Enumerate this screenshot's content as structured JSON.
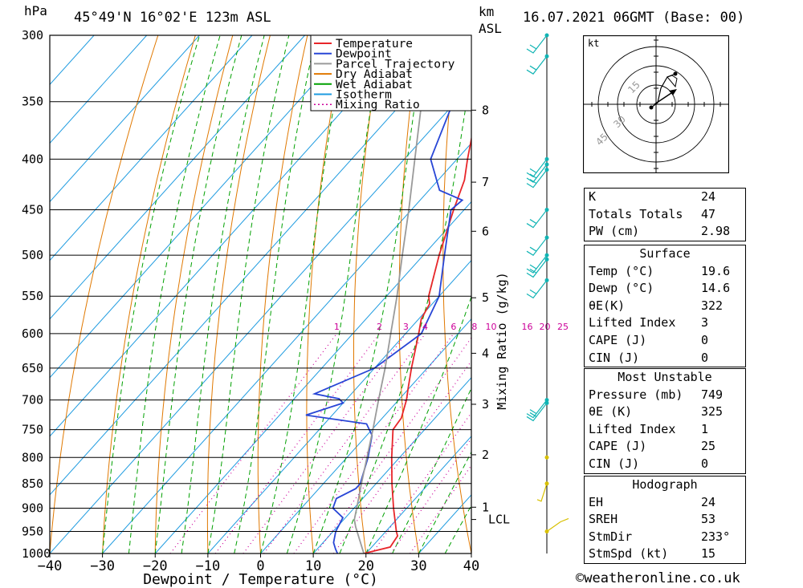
{
  "header": {
    "pressure_unit": "hPa",
    "station": "45°49'N 16°02'E 123m ASL",
    "km_label": "km",
    "asl_label": "ASL",
    "datetime": "16.07.2021 06GMT (Base: 00)"
  },
  "chart_data": {
    "type": "line",
    "subtype": "skew-T log-P diagram",
    "xlabel": "Dewpoint / Temperature (°C)",
    "ylabel": "hPa",
    "right_axis_label": "Mixing Ratio (g/kg)",
    "x_ticks": [
      -40,
      -30,
      -20,
      -10,
      0,
      10,
      20,
      30,
      40
    ],
    "pressure_levels": [
      300,
      350,
      400,
      450,
      500,
      550,
      600,
      650,
      700,
      750,
      800,
      850,
      900,
      950,
      1000
    ],
    "xlim_at_1000hPa": [
      -40,
      40
    ],
    "plim": [
      1000,
      300
    ],
    "height_ticks_km": [
      {
        "label": "8",
        "p": 357
      },
      {
        "label": "7",
        "p": 422
      },
      {
        "label": "6",
        "p": 473
      },
      {
        "label": "5",
        "p": 552
      },
      {
        "label": "4",
        "p": 628
      },
      {
        "label": "3",
        "p": 707
      },
      {
        "label": "2",
        "p": 795
      },
      {
        "label": "1",
        "p": 898
      },
      {
        "label": "LCL",
        "p": 924
      }
    ],
    "mixing_ratio_labels": [
      "1",
      "2",
      "3",
      "4",
      "6",
      "8",
      "10",
      "16",
      "20",
      "25"
    ],
    "mixing_ratio_values": [
      1,
      2,
      3,
      4,
      6,
      8,
      10,
      16,
      20,
      25
    ],
    "legend": [
      {
        "name": "Temperature",
        "color": "#e8262a",
        "style": "solid"
      },
      {
        "name": "Dewpoint",
        "color": "#2846d6",
        "style": "solid"
      },
      {
        "name": "Parcel Trajectory",
        "color": "#9a9a9a",
        "style": "solid"
      },
      {
        "name": "Dry Adiabat",
        "color": "#e07800",
        "style": "solid"
      },
      {
        "name": "Wet Adiabat",
        "color": "#00a000",
        "style": "solid"
      },
      {
        "name": "Isotherm",
        "color": "#1e9be0",
        "style": "solid"
      },
      {
        "name": "Mixing Ratio",
        "color": "#cc0099",
        "style": "dotted"
      }
    ],
    "series": [
      {
        "name": "Temperature",
        "points": [
          [
            1000,
            19.6
          ],
          [
            985,
            23.5
          ],
          [
            960,
            23.0
          ],
          [
            950,
            22.0
          ],
          [
            900,
            17.5
          ],
          [
            850,
            13.0
          ],
          [
            800,
            8.5
          ],
          [
            750,
            4.0
          ],
          [
            730,
            3.6
          ],
          [
            700,
            1.5
          ],
          [
            680,
            -0.3
          ],
          [
            650,
            -3.0
          ],
          [
            600,
            -7.5
          ],
          [
            580,
            -9.5
          ],
          [
            560,
            -10.5
          ],
          [
            550,
            -12.0
          ],
          [
            500,
            -17.0
          ],
          [
            450,
            -22.0
          ],
          [
            420,
            -25.0
          ],
          [
            400,
            -28.0
          ],
          [
            370,
            -32.5
          ],
          [
            350,
            -35.0
          ],
          [
            330,
            -38.5
          ],
          [
            300,
            -44.0
          ]
        ]
      },
      {
        "name": "Dewpoint",
        "points": [
          [
            1000,
            14.6
          ],
          [
            990,
            13.5
          ],
          [
            975,
            12.0
          ],
          [
            950,
            10.5
          ],
          [
            920,
            9.5
          ],
          [
            900,
            6.0
          ],
          [
            880,
            5.0
          ],
          [
            860,
            7.0
          ],
          [
            850,
            7.0
          ],
          [
            800,
            4.0
          ],
          [
            760,
            1.0
          ],
          [
            740,
            -2.0
          ],
          [
            725,
            -15.0
          ],
          [
            705,
            -10.0
          ],
          [
            698,
            -11.5
          ],
          [
            690,
            -17.0
          ],
          [
            650,
            -10.0
          ],
          [
            600,
            -7.0
          ],
          [
            550,
            -10.0
          ],
          [
            500,
            -16.0
          ],
          [
            450,
            -22.5
          ],
          [
            440,
            -22.0
          ],
          [
            430,
            -28.0
          ],
          [
            400,
            -35.0
          ],
          [
            350,
            -40.5
          ],
          [
            340,
            -48.0
          ],
          [
            320,
            -49.0
          ],
          [
            300,
            -56.0
          ]
        ]
      },
      {
        "name": "Parcel Trajectory",
        "points": [
          [
            1000,
            19.6
          ],
          [
            940,
            13.5
          ],
          [
            924,
            12.0
          ],
          [
            900,
            10.5
          ],
          [
            850,
            7.2
          ],
          [
            800,
            3.8
          ],
          [
            750,
            0.2
          ],
          [
            700,
            -3.8
          ],
          [
            650,
            -8.0
          ],
          [
            600,
            -12.8
          ],
          [
            550,
            -18.0
          ],
          [
            500,
            -24.0
          ],
          [
            450,
            -30.5
          ],
          [
            400,
            -38.0
          ],
          [
            350,
            -46.5
          ],
          [
            300,
            -56.0
          ]
        ]
      }
    ],
    "wind_barbs_pressure": [
      300,
      315,
      400,
      405,
      410,
      450,
      480,
      500,
      505,
      530,
      700,
      705,
      800,
      850,
      950
    ]
  },
  "hodograph": {
    "unit": "kt",
    "rings": [
      "15",
      "30",
      "45"
    ]
  },
  "indices": {
    "general": [
      {
        "label": "K",
        "value": "24"
      },
      {
        "label": "Totals Totals",
        "value": "47"
      },
      {
        "label": "PW (cm)",
        "value": "2.98"
      }
    ],
    "surface_title": "Surface",
    "surface": [
      {
        "label": "Temp (°C)",
        "value": "19.6"
      },
      {
        "label": "Dewp (°C)",
        "value": "14.6"
      },
      {
        "label": "θE(K)",
        "value": "322"
      },
      {
        "label": "Lifted Index",
        "value": "3"
      },
      {
        "label": "CAPE (J)",
        "value": "0"
      },
      {
        "label": "CIN (J)",
        "value": "0"
      }
    ],
    "mu_title": "Most Unstable",
    "mu": [
      {
        "label": "Pressure (mb)",
        "value": "749"
      },
      {
        "label": "θE (K)",
        "value": "325"
      },
      {
        "label": "Lifted Index",
        "value": "1"
      },
      {
        "label": "CAPE (J)",
        "value": "25"
      },
      {
        "label": "CIN (J)",
        "value": "0"
      }
    ],
    "hodo_title": "Hodograph",
    "hodo": [
      {
        "label": "EH",
        "value": "24"
      },
      {
        "label": "SREH",
        "value": "53"
      },
      {
        "label": "StmDir",
        "value": "233°"
      },
      {
        "label": "StmSpd (kt)",
        "value": "15"
      }
    ]
  },
  "footer": {
    "copyright": "©weatheronline.co.uk"
  }
}
